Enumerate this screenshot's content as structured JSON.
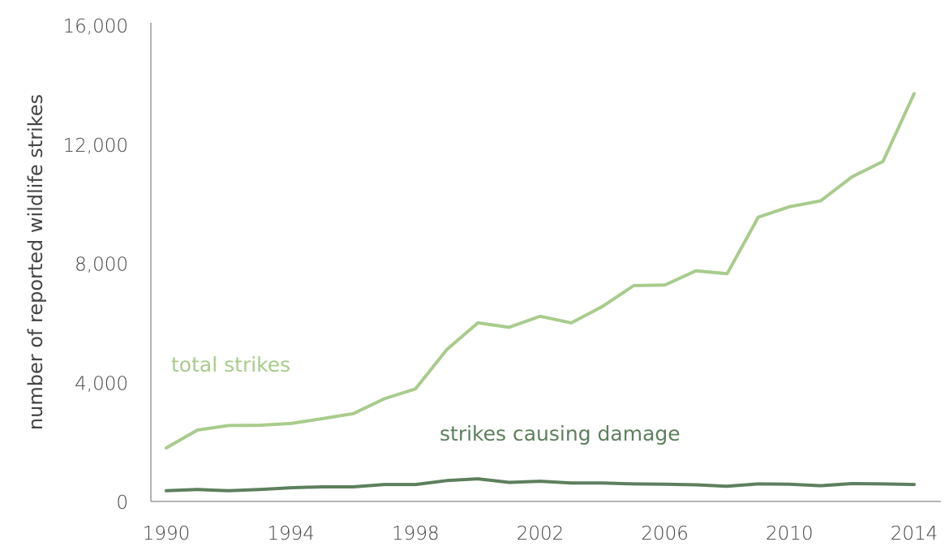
{
  "chart_data": {
    "type": "line",
    "title": "",
    "xlabel": "",
    "ylabel": "number of reported wildlife strikes",
    "x": [
      1990,
      1991,
      1992,
      1993,
      1994,
      1995,
      1996,
      1997,
      1998,
      1999,
      2000,
      2001,
      2002,
      2003,
      2004,
      2005,
      2006,
      2007,
      2008,
      2009,
      2010,
      2011,
      2012,
      2013,
      2014
    ],
    "xticks": [
      "1990",
      "1994",
      "1998",
      "2002",
      "2006",
      "2010",
      "2014"
    ],
    "yticks": [
      "0",
      "4,000",
      "8,000",
      "12,000",
      "16,000"
    ],
    "ylim": [
      0,
      16000
    ],
    "xlim": [
      1990,
      2014
    ],
    "grid": false,
    "legend": "inline labels",
    "series": [
      {
        "name": "total strikes",
        "color": "#a8cc8c",
        "values": [
          1800,
          2400,
          2550,
          2560,
          2620,
          2780,
          2950,
          3450,
          3780,
          5100,
          6000,
          5850,
          6220,
          6000,
          6550,
          7250,
          7270,
          7750,
          7650,
          9550,
          9900,
          10100,
          10900,
          11420,
          13700
        ]
      },
      {
        "name": "strikes causing damage",
        "color": "#5d7f5d",
        "values": [
          360,
          400,
          360,
          400,
          460,
          490,
          490,
          570,
          570,
          700,
          760,
          640,
          680,
          620,
          620,
          590,
          580,
          560,
          510,
          590,
          580,
          530,
          600,
          590,
          570
        ]
      }
    ]
  }
}
